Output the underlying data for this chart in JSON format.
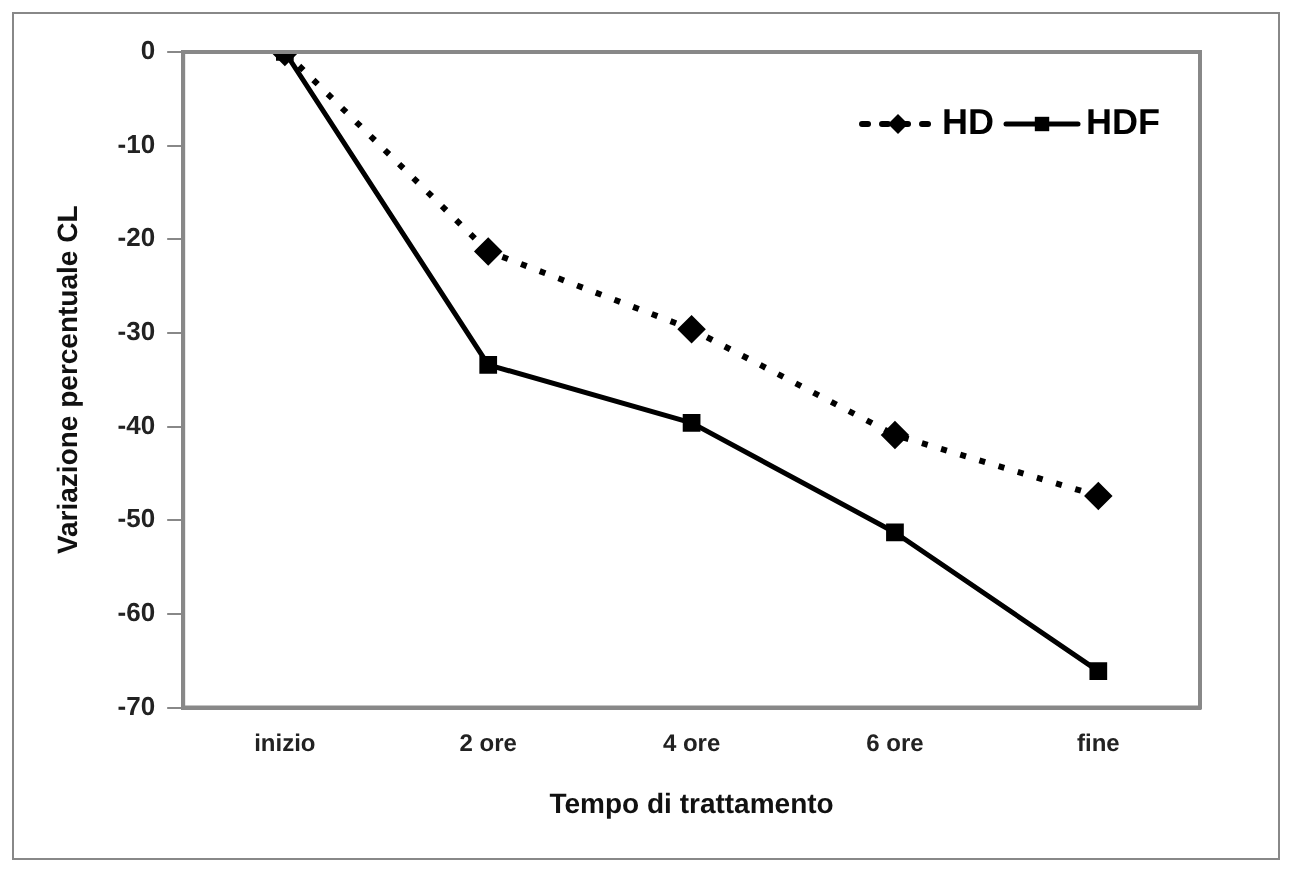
{
  "chart_data": {
    "type": "line",
    "xlabel": "Tempo di trattamento",
    "ylabel": "Variazione percentuale CL",
    "categories": [
      "inizio",
      "2 ore",
      "4 ore",
      "6 ore",
      "fine"
    ],
    "series": [
      {
        "name": "HD",
        "color": "#000000",
        "values": [
          0,
          -21.3,
          -29.6,
          -40.9,
          -47.4
        ],
        "marker": "diamond",
        "line_style": "dotted"
      },
      {
        "name": "HDF",
        "color": "#000000",
        "values": [
          0,
          -33.4,
          -39.6,
          -51.3,
          -66.1
        ],
        "marker": "square",
        "line_style": "solid"
      }
    ],
    "ylim": [
      -70,
      0
    ],
    "yticks": [
      0,
      -10,
      -20,
      -30,
      -40,
      -50,
      -60,
      -70
    ],
    "grid": false,
    "legend": "top right"
  }
}
